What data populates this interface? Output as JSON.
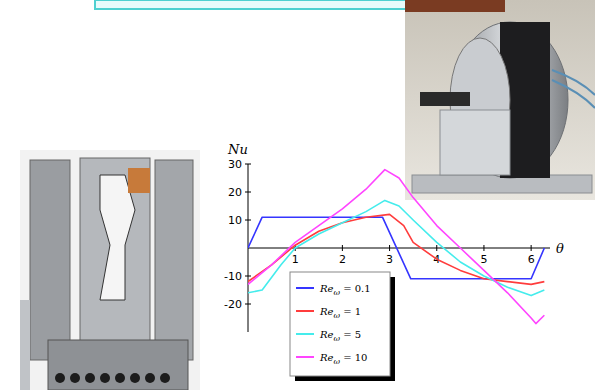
{
  "chart_data": {
    "type": "line",
    "x_label": "θ",
    "y_label": "Nu",
    "xlim": [
      0,
      6.4
    ],
    "ylim": [
      -30,
      30
    ],
    "xticks": [
      1,
      2,
      3,
      4,
      5,
      6
    ],
    "yticks": [
      -20,
      -10,
      10,
      20,
      30
    ],
    "grid": false,
    "legend": "lower left",
    "series": [
      {
        "name": "Reω = 0.1",
        "color": "#3535ff",
        "x": [
          0,
          0.3,
          2.85,
          3.45,
          6.0,
          6.28
        ],
        "values": [
          0,
          11,
          11,
          -11,
          -11,
          0
        ]
      },
      {
        "name": "Reω = 1",
        "color": "#ff3c3c",
        "x": [
          0,
          0.5,
          1,
          1.5,
          2,
          2.5,
          3,
          3.3,
          3.5,
          4,
          4.5,
          5,
          5.5,
          6,
          6.28
        ],
        "values": [
          -12,
          -6,
          1,
          6,
          9,
          11,
          12,
          8,
          2,
          -4,
          -8,
          -11,
          -12,
          -13,
          -12
        ]
      },
      {
        "name": "Reω = 5",
        "color": "#45ecec",
        "x": [
          0,
          0.3,
          0.7,
          1,
          1.5,
          2,
          2.5,
          2.9,
          3.2,
          3.5,
          4,
          4.5,
          5,
          5.5,
          6,
          6.28
        ],
        "values": [
          -16,
          -15,
          -6,
          0,
          5,
          9,
          13,
          17,
          15,
          10,
          2,
          -5,
          -10,
          -14,
          -17,
          -15
        ]
      },
      {
        "name": "Reω = 10",
        "color": "#ff45ff",
        "x": [
          0,
          0.5,
          1,
          1.5,
          2,
          2.5,
          2.9,
          3.2,
          3.5,
          4,
          4.5,
          5,
          5.5,
          6,
          6.1,
          6.28
        ],
        "values": [
          -13,
          -6,
          2,
          8,
          14,
          21,
          28,
          25,
          18,
          8,
          0,
          -8,
          -16,
          -25,
          -27,
          -24
        ]
      }
    ]
  }
}
